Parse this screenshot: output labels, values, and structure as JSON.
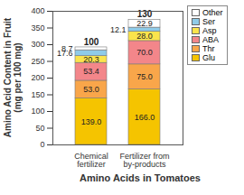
{
  "chart_data": {
    "type": "bar",
    "stacked": true,
    "data_labels": true,
    "grid": false,
    "legend": "right",
    "x_label": "Amino Acids in Tomatoes",
    "y_label": "Amino Acid Content in Fruit (mg per 100 mg)",
    "categories": [
      "Chemical fertilizer",
      "Fertilizer from by-products"
    ],
    "annotations": [
      "100",
      "130"
    ],
    "ylim": [
      0,
      400
    ],
    "yticks": [
      0,
      50,
      100,
      150,
      200,
      250,
      300,
      350,
      400
    ],
    "series": [
      {
        "name": "Glu",
        "color": "#f5c400",
        "values": [
          139.0,
          166.0
        ],
        "value_labels": [
          "139.0",
          "166.0"
        ]
      },
      {
        "name": "Thr",
        "color": "#f9a64a",
        "values": [
          53.0,
          75.0
        ],
        "value_labels": [
          "53.0",
          "75.0"
        ]
      },
      {
        "name": "ABA",
        "color": "#f3868a",
        "values": [
          53.4,
          70.0
        ],
        "value_labels": [
          "53.4",
          "70.0"
        ]
      },
      {
        "name": "Asp",
        "color": "#fbe44c",
        "values": [
          20.3,
          28.0
        ],
        "value_labels": [
          "20.3",
          "28.0"
        ]
      },
      {
        "name": "Ser",
        "color": "#8fcbe8",
        "values": [
          17.6,
          12.1
        ],
        "value_labels": [
          "17.6",
          "12.1"
        ]
      },
      {
        "name": "Other",
        "color": "#ffffff",
        "values": [
          8.7,
          22.9
        ],
        "value_labels": [
          "8.7",
          "22.9"
        ]
      }
    ]
  }
}
